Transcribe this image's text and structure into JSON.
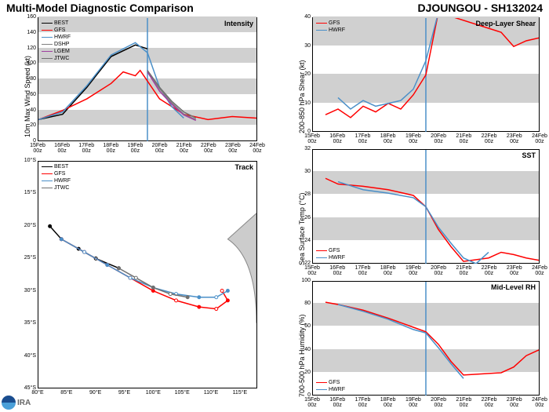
{
  "header": {
    "left": "Multi-Model Diagnostic Comparison",
    "right": "DJOUNGOU - SH132024"
  },
  "logo_text": "IRA",
  "xticks": [
    "15Feb 00z",
    "16Feb 00z",
    "17Feb 00z",
    "18Feb 00z",
    "19Feb 00z",
    "20Feb 00z",
    "21Feb 00z",
    "22Feb 00z",
    "23Feb 00z",
    "24Feb 00z"
  ],
  "intensity": {
    "title": "Intensity",
    "ylabel": "10m Max Wind Speed (kt)",
    "ylim": [
      0,
      160
    ],
    "ytick_step": 20,
    "legend_pos": "top-left",
    "series": {
      "BEST": {
        "color": "#000000",
        "x": [
          0,
          1,
          2,
          3,
          4,
          4.5
        ],
        "y": [
          28,
          35,
          70,
          110,
          125,
          120
        ]
      },
      "GFS": {
        "color": "#ff0000",
        "x": [
          0,
          1,
          2,
          3,
          3.5,
          4,
          4.2,
          5,
          6,
          7,
          8,
          9
        ],
        "y": [
          28,
          40,
          55,
          75,
          90,
          85,
          92,
          55,
          35,
          28,
          32,
          30
        ]
      },
      "HWRF": {
        "color": "#4a8fc8",
        "x": [
          0,
          1,
          2,
          3,
          4,
          4.5,
          5,
          5.5,
          6
        ],
        "y": [
          28,
          38,
          72,
          112,
          128,
          115,
          70,
          45,
          30
        ]
      },
      "DSHP": {
        "color": "#808080",
        "x": [
          4.5,
          5,
          5.5,
          6,
          6.5
        ],
        "y": [
          90,
          68,
          50,
          35,
          28
        ]
      },
      "LGEM": {
        "color": "#a040a0",
        "x": [
          4.5,
          5,
          5.5,
          6,
          6.5
        ],
        "y": [
          90,
          65,
          48,
          34,
          27
        ]
      },
      "JTWC": {
        "color": "#707070",
        "x": [
          4.5,
          5,
          5.5,
          6,
          6.5
        ],
        "y": [
          92,
          70,
          52,
          38,
          30
        ]
      }
    },
    "vline": 4.5
  },
  "track": {
    "title": "Track",
    "xlim": [
      80,
      118
    ],
    "xtick_step": 5,
    "ylim": [
      45,
      10
    ],
    "ytick_step": 5,
    "legend_pos": "top-left",
    "series": {
      "BEST": {
        "color": "#000000",
        "lon": [
          82,
          84,
          87,
          90,
          94
        ],
        "lat": [
          20,
          22,
          23.5,
          25,
          26.5
        ]
      },
      "GFS": {
        "color": "#ff0000",
        "lon": [
          84,
          88,
          92,
          96,
          100,
          104,
          108,
          111,
          113,
          112
        ],
        "lat": [
          22,
          24,
          26,
          28,
          30,
          31.5,
          32.5,
          32.8,
          31.5,
          30
        ]
      },
      "HWRF": {
        "color": "#4a8fc8",
        "lon": [
          84,
          88,
          92,
          96,
          100,
          104,
          108,
          111,
          113
        ],
        "lat": [
          22,
          24,
          26,
          28,
          29.5,
          30.5,
          31,
          31,
          30
        ]
      },
      "JTWC": {
        "color": "#707070",
        "lon": [
          94,
          97,
          100,
          103,
          106
        ],
        "lat": [
          26.5,
          28,
          29.5,
          30.5,
          31
        ]
      }
    }
  },
  "shear": {
    "title": "Deep-Layer Shear",
    "ylabel": "200-850 hPa Shear (kt)",
    "ylim": [
      0,
      40
    ],
    "ytick_step": 10,
    "legend_pos": "top-left",
    "series": {
      "GFS": {
        "color": "#ff0000",
        "x": [
          0.5,
          1,
          1.5,
          2,
          2.5,
          3,
          3.5,
          4,
          4.5,
          5,
          7.5,
          8,
          8.5,
          9
        ],
        "y": [
          6,
          8,
          5,
          9,
          7,
          10,
          8,
          13,
          20,
          42,
          35,
          30,
          32,
          33
        ]
      },
      "HWRF": {
        "color": "#4a8fc8",
        "x": [
          1,
          1.5,
          2,
          2.5,
          3,
          3.5,
          4,
          4.5,
          5
        ],
        "y": [
          12,
          8,
          11,
          9,
          10,
          11,
          15,
          25,
          42
        ]
      }
    },
    "vline": 4.5
  },
  "sst": {
    "title": "SST",
    "ylabel": "Sea Surface Temp (°C)",
    "ylim": [
      22,
      32
    ],
    "ytick_step": 2,
    "legend_pos": "bottom-left",
    "series": {
      "GFS": {
        "color": "#ff0000",
        "x": [
          0.5,
          1,
          2,
          3,
          4,
          4.5,
          5,
          5.5,
          6,
          7,
          7.5,
          8,
          8.5,
          9
        ],
        "y": [
          29.5,
          29,
          28.8,
          28.5,
          28,
          27,
          25,
          23.5,
          22.2,
          22.5,
          23,
          22.8,
          22.5,
          22.3
        ]
      },
      "HWRF": {
        "color": "#4a8fc8",
        "x": [
          1,
          2,
          3,
          4,
          4.5,
          5,
          5.5,
          6,
          6.5,
          7
        ],
        "y": [
          29.2,
          28.5,
          28.2,
          27.8,
          27,
          25.2,
          23.8,
          22.5,
          22,
          23
        ]
      }
    },
    "vline": 4.5
  },
  "rh": {
    "title": "Mid-Level RH",
    "ylabel": "700-500 hPa Humidity (%)",
    "ylim": [
      0,
      100
    ],
    "ytick_step": 20,
    "legend_pos": "bottom-left",
    "series": {
      "GFS": {
        "color": "#ff0000",
        "x": [
          0.5,
          1,
          2,
          3,
          4,
          4.5,
          5,
          5.5,
          6,
          7.5,
          8,
          8.5,
          9
        ],
        "y": [
          82,
          80,
          75,
          68,
          60,
          56,
          45,
          30,
          18,
          20,
          25,
          35,
          40
        ]
      },
      "HWRF": {
        "color": "#4a8fc8",
        "x": [
          1,
          2,
          3,
          4,
          4.5,
          5,
          5.5,
          6
        ],
        "y": [
          80,
          74,
          67,
          58,
          55,
          42,
          28,
          15
        ]
      }
    },
    "vline": 4.5
  },
  "colors": {
    "stripe": "#d0d0d0",
    "bg": "#ffffff",
    "axis": "#000000"
  }
}
